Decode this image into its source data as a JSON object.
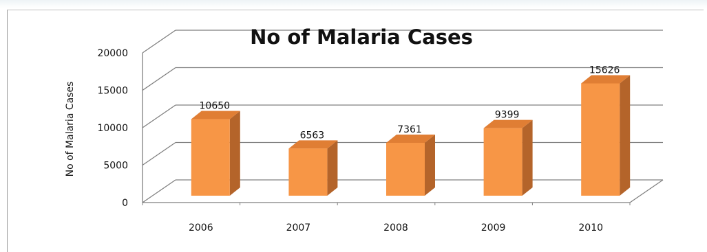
{
  "chart_data": {
    "type": "bar",
    "title": "No of Malaria Cases",
    "xlabel": "",
    "ylabel": "No of Malaria  Cases",
    "categories": [
      "2006",
      "2007",
      "2008",
      "2009",
      "2010"
    ],
    "values": [
      10650,
      6563,
      7361,
      9399,
      15626
    ],
    "ylim": [
      0,
      20000
    ],
    "yticks": [
      "0",
      "5000",
      "10000",
      "15000",
      "20000"
    ],
    "grid": true,
    "legend": "none",
    "colors": {
      "bar_front": "#f79646",
      "bar_side": "#b4642a",
      "bar_top": "#e07e34",
      "gridline": "#7f7f7f"
    }
  }
}
